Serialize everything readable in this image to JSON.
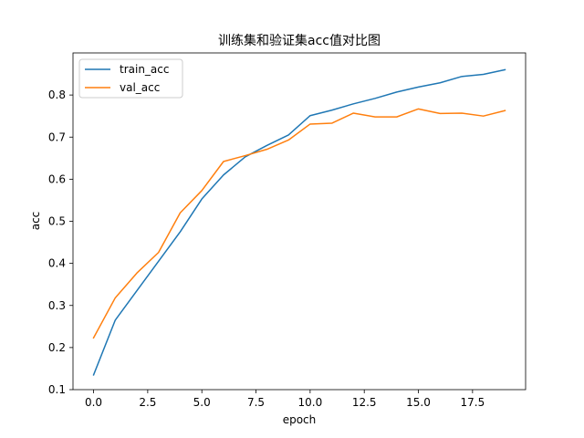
{
  "chart_data": {
    "type": "line",
    "title": "训练集和验证集acc值对比图",
    "xlabel": "epoch",
    "ylabel": "acc",
    "xlim": [
      -0.95,
      19.95
    ],
    "ylim": [
      0.1,
      0.9
    ],
    "x_ticks": [
      0.0,
      2.5,
      5.0,
      7.5,
      10.0,
      12.5,
      15.0,
      17.5
    ],
    "x_tick_labels": [
      "0.0",
      "2.5",
      "5.0",
      "7.5",
      "10.0",
      "12.5",
      "15.0",
      "17.5"
    ],
    "y_ticks": [
      0.1,
      0.2,
      0.3,
      0.4,
      0.5,
      0.6,
      0.7,
      0.8
    ],
    "y_tick_labels": [
      "0.1",
      "0.2",
      "0.3",
      "0.4",
      "0.5",
      "0.6",
      "0.7",
      "0.8"
    ],
    "grid": false,
    "legend_position": "upper-left",
    "x": [
      0,
      1,
      2,
      3,
      4,
      5,
      6,
      7,
      8,
      9,
      10,
      11,
      12,
      13,
      14,
      15,
      16,
      17,
      18,
      19
    ],
    "series": [
      {
        "name": "train_acc",
        "color": "#1f77b4",
        "values": [
          0.135,
          0.265,
          0.335,
          0.405,
          0.475,
          0.553,
          0.61,
          0.653,
          0.68,
          0.705,
          0.751,
          0.764,
          0.779,
          0.792,
          0.807,
          0.819,
          0.829,
          0.844,
          0.849,
          0.86
        ]
      },
      {
        "name": "val_acc",
        "color": "#ff7f0e",
        "values": [
          0.223,
          0.318,
          0.377,
          0.426,
          0.52,
          0.573,
          0.642,
          0.656,
          0.671,
          0.693,
          0.731,
          0.733,
          0.757,
          0.748,
          0.748,
          0.767,
          0.756,
          0.757,
          0.75,
          0.763
        ]
      }
    ]
  }
}
